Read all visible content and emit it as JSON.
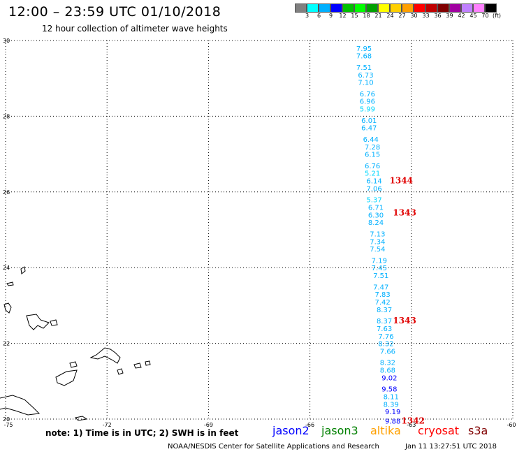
{
  "title": "12:00 – 23:59 UTC 01/10/2018",
  "subtitle": "12 hour collection of altimeter wave heights",
  "legend": {
    "colors": [
      "#808080",
      "#00ffff",
      "#00b0ff",
      "#0000ff",
      "#00c000",
      "#00ff00",
      "#00a000",
      "#ffff00",
      "#ffd000",
      "#ffa000",
      "#ff0000",
      "#c00000",
      "#800000",
      "#a000a0",
      "#c080ff",
      "#ff80ff",
      "#000000"
    ],
    "labels": [
      "",
      "3",
      "6",
      "9",
      "12",
      "15",
      "18",
      "21",
      "24",
      "27",
      "30",
      "33",
      "36",
      "39",
      "42",
      "45",
      "70"
    ],
    "unit": "(ft)"
  },
  "chart_data": {
    "type": "scatter",
    "xlim": [
      -75,
      -60
    ],
    "ylim": [
      20,
      30
    ],
    "xticks": [
      -75,
      -72,
      -69,
      -66,
      -63,
      -60
    ],
    "yticks": [
      20,
      22,
      24,
      26,
      28,
      30
    ],
    "grid": true,
    "points": [
      {
        "x": -64.4,
        "y": 29.8,
        "label": "7.95",
        "color": "#00b0ff"
      },
      {
        "x": -64.4,
        "y": 29.6,
        "label": "7.68",
        "color": "#00b0ff"
      },
      {
        "x": -64.4,
        "y": 29.3,
        "label": "7.51",
        "color": "#00b0ff"
      },
      {
        "x": -64.35,
        "y": 29.1,
        "label": "6.73",
        "color": "#00b0ff"
      },
      {
        "x": -64.35,
        "y": 28.9,
        "label": "7.10",
        "color": "#00b0ff"
      },
      {
        "x": -64.3,
        "y": 28.6,
        "label": "6.76",
        "color": "#00b0ff"
      },
      {
        "x": -64.3,
        "y": 28.4,
        "label": "6.96",
        "color": "#00b0ff"
      },
      {
        "x": -64.3,
        "y": 28.2,
        "label": "5.99",
        "color": "#00d8ff"
      },
      {
        "x": -64.25,
        "y": 27.9,
        "label": "6.01",
        "color": "#00b0ff"
      },
      {
        "x": -64.25,
        "y": 27.7,
        "label": "6.47",
        "color": "#00b0ff"
      },
      {
        "x": -64.2,
        "y": 27.4,
        "label": "6.44",
        "color": "#00b0ff"
      },
      {
        "x": -64.15,
        "y": 27.2,
        "label": "7.28",
        "color": "#00b0ff"
      },
      {
        "x": -64.15,
        "y": 27.0,
        "label": "6.15",
        "color": "#00b0ff"
      },
      {
        "x": -64.15,
        "y": 26.7,
        "label": "6.76",
        "color": "#00b0ff"
      },
      {
        "x": -64.15,
        "y": 26.5,
        "label": "5.21",
        "color": "#00d8ff"
      },
      {
        "x": -64.1,
        "y": 26.3,
        "label": "6.14",
        "color": "#00b0ff"
      },
      {
        "x": -64.1,
        "y": 26.1,
        "label": "7.06",
        "color": "#00b0ff"
      },
      {
        "x": -64.1,
        "y": 25.8,
        "label": "5.37",
        "color": "#00d8ff"
      },
      {
        "x": -64.05,
        "y": 25.6,
        "label": "6.71",
        "color": "#00b0ff"
      },
      {
        "x": -64.05,
        "y": 25.4,
        "label": "6.30",
        "color": "#00b0ff"
      },
      {
        "x": -64.05,
        "y": 25.2,
        "label": "8.24",
        "color": "#00b0ff"
      },
      {
        "x": -64.0,
        "y": 24.9,
        "label": "7.13",
        "color": "#00b0ff"
      },
      {
        "x": -64.0,
        "y": 24.7,
        "label": "7.34",
        "color": "#00b0ff"
      },
      {
        "x": -64.0,
        "y": 24.5,
        "label": "7.54",
        "color": "#00b0ff"
      },
      {
        "x": -63.95,
        "y": 24.2,
        "label": "7.19",
        "color": "#00b0ff"
      },
      {
        "x": -63.95,
        "y": 24.0,
        "label": "7.45",
        "color": "#00b0ff"
      },
      {
        "x": -63.9,
        "y": 23.8,
        "label": "7.51",
        "color": "#00b0ff"
      },
      {
        "x": -63.9,
        "y": 23.5,
        "label": "7.47",
        "color": "#00b0ff"
      },
      {
        "x": -63.85,
        "y": 23.3,
        "label": "7.83",
        "color": "#00b0ff"
      },
      {
        "x": -63.85,
        "y": 23.1,
        "label": "7.42",
        "color": "#00b0ff"
      },
      {
        "x": -63.8,
        "y": 22.9,
        "label": "8.37",
        "color": "#00b0ff"
      },
      {
        "x": -63.8,
        "y": 22.6,
        "label": "8.37",
        "color": "#00b0ff"
      },
      {
        "x": -63.8,
        "y": 22.4,
        "label": "7.63",
        "color": "#00b0ff"
      },
      {
        "x": -63.75,
        "y": 22.2,
        "label": "7.76",
        "color": "#00b0ff"
      },
      {
        "x": -63.75,
        "y": 22.0,
        "label": "8.32",
        "color": "#00b0ff"
      },
      {
        "x": -63.7,
        "y": 21.8,
        "label": "7.66",
        "color": "#00b0ff"
      },
      {
        "x": -63.7,
        "y": 21.5,
        "label": "8.32",
        "color": "#00b0ff"
      },
      {
        "x": -63.7,
        "y": 21.3,
        "label": "8.68",
        "color": "#00b0ff"
      },
      {
        "x": -63.65,
        "y": 21.1,
        "label": "9.02",
        "color": "#0000ff"
      },
      {
        "x": -63.65,
        "y": 20.8,
        "label": "9.58",
        "color": "#0000ff"
      },
      {
        "x": -63.6,
        "y": 20.6,
        "label": "8.11",
        "color": "#00b0ff"
      },
      {
        "x": -63.6,
        "y": 20.4,
        "label": "8.39",
        "color": "#00b0ff"
      },
      {
        "x": -63.55,
        "y": 20.2,
        "label": "9.19",
        "color": "#0000ff"
      },
      {
        "x": -63.55,
        "y": 19.95,
        "label": "9.88",
        "color": "#0000ff"
      }
    ],
    "time_labels": [
      {
        "x": -63.3,
        "y": 26.3,
        "label": "1344"
      },
      {
        "x": -63.2,
        "y": 25.45,
        "label": "1343"
      },
      {
        "x": -63.2,
        "y": 22.6,
        "label": "1343"
      },
      {
        "x": -62.95,
        "y": 19.95,
        "label": "1342"
      }
    ]
  },
  "note": "note: 1) Time is in UTC; 2) SWH is in feet",
  "satellites": [
    {
      "name": "jason2",
      "color": "#0000ff"
    },
    {
      "name": "jason3",
      "color": "#008000"
    },
    {
      "name": "altika",
      "color": "#ffa000"
    },
    {
      "name": "cryosat",
      "color": "#ff0000"
    },
    {
      "name": "s3a",
      "color": "#800000"
    }
  ],
  "footer": "NOAA/NESDIS Center for Satellite Applications and Research",
  "footer_time": "Jan 11 13:27:51 UTC 2018"
}
